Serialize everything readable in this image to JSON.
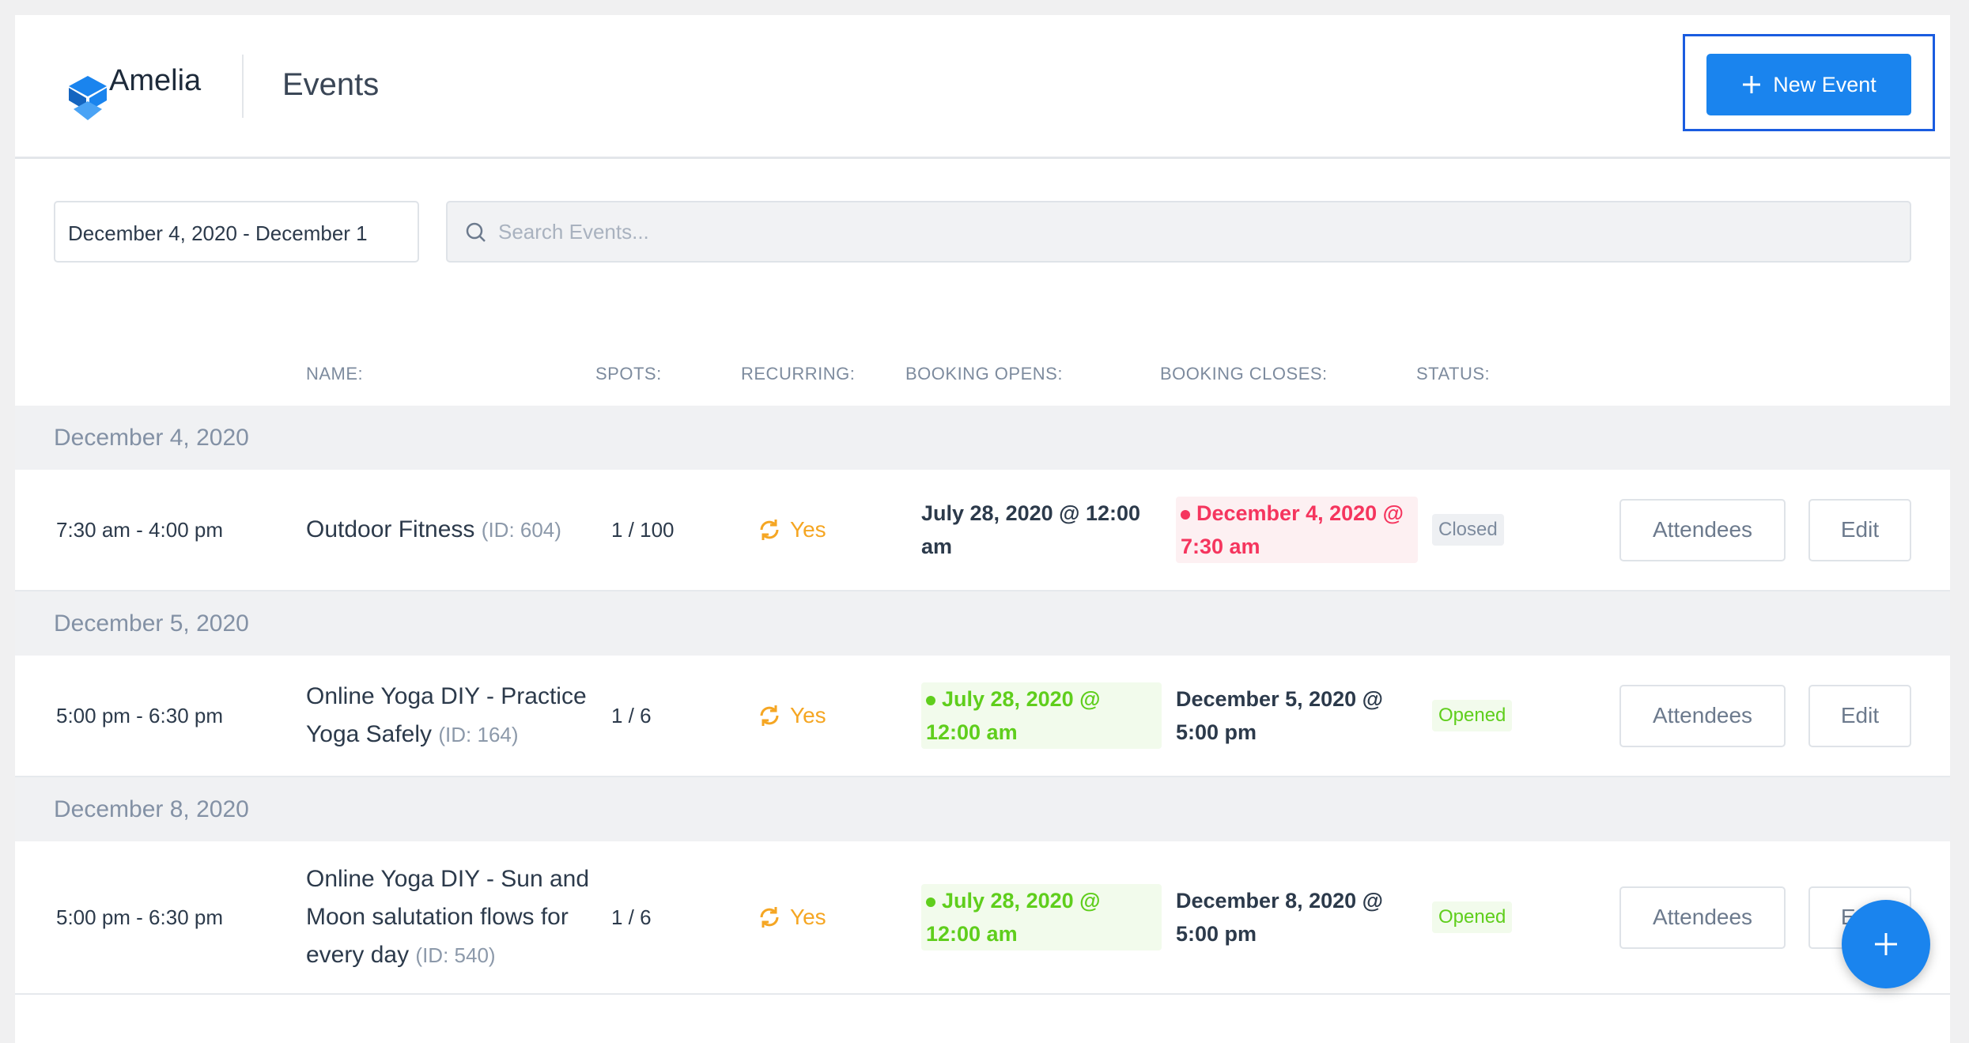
{
  "header": {
    "brand": "Amelia",
    "title": "Events",
    "new_button": "New Event"
  },
  "filters": {
    "date_range": "December 4, 2020 - December 1",
    "search_placeholder": "Search Events..."
  },
  "columns": [
    "NAME:",
    "SPOTS:",
    "RECURRING:",
    "BOOKING OPENS:",
    "BOOKING CLOSES:",
    "STATUS:"
  ],
  "groups": [
    {
      "date": "December 4, 2020",
      "events": [
        {
          "time": "7:30 am - 4:00 pm",
          "name": "Outdoor Fitness",
          "id": "(ID: 604)",
          "spots": "1 / 100",
          "recurring": "Yes",
          "booking_opens": "July 28, 2020 @ 12:00 am",
          "booking_closes": "December 4, 2020 @ 7:30 am",
          "status": "Closed",
          "actions": [
            "Attendees",
            "Edit"
          ]
        }
      ]
    },
    {
      "date": "December 5, 2020",
      "events": [
        {
          "time": "5:00 pm - 6:30 pm",
          "name": "Online Yoga DIY - Practice Yoga Safely",
          "id": "(ID: 164)",
          "spots": "1 / 6",
          "recurring": "Yes",
          "booking_opens": "July 28, 2020 @ 12:00 am",
          "booking_closes": "December 5, 2020 @ 5:00 pm",
          "status": "Opened",
          "actions": [
            "Attendees",
            "Edit"
          ]
        }
      ]
    },
    {
      "date": "December 8, 2020",
      "events": [
        {
          "time": "5:00 pm - 6:30 pm",
          "name": "Online Yoga DIY - Sun and Moon salutation flows for every day",
          "id": "(ID: 540)",
          "spots": "1 / 6",
          "recurring": "Yes",
          "booking_opens": "July 28, 2020 @ 12:00 am",
          "booking_closes": "December 8, 2020 @ 5:00 pm",
          "status": "Opened",
          "actions": [
            "Attendees",
            "Edit"
          ]
        }
      ]
    }
  ]
}
